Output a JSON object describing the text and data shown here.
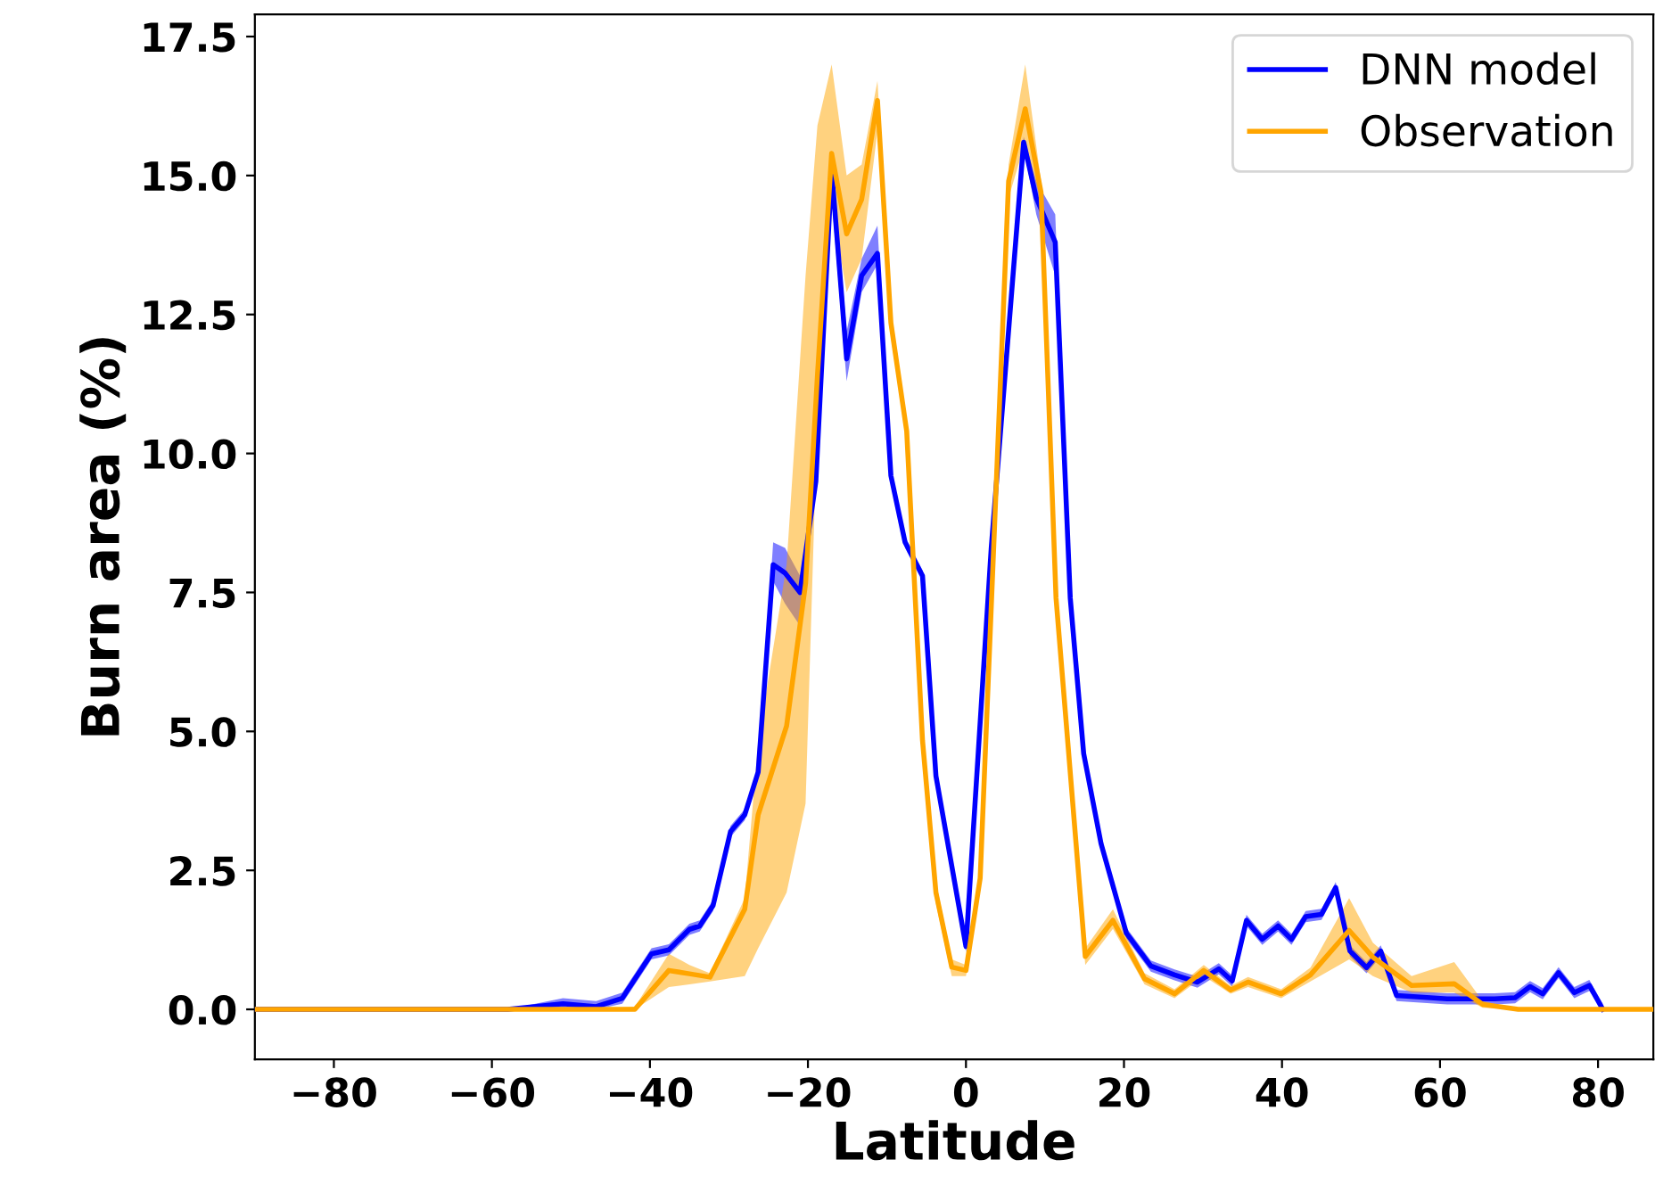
{
  "chart_data": {
    "type": "line",
    "xlabel": "Latitude",
    "ylabel": "Burn area (%)",
    "xlim": [
      -90,
      87
    ],
    "ylim": [
      -0.9,
      17.9
    ],
    "xticks": [
      {
        "value": -80,
        "label": "−80"
      },
      {
        "value": -60,
        "label": "−60"
      },
      {
        "value": -40,
        "label": "−40"
      },
      {
        "value": -20,
        "label": "−20"
      },
      0,
      20,
      40,
      60,
      80
    ],
    "yticks": [
      {
        "value": 0,
        "label": "0.0"
      },
      {
        "value": 2.5,
        "label": "2.5"
      },
      {
        "value": 5,
        "label": "5.0"
      },
      {
        "value": 7.5,
        "label": "7.5"
      },
      {
        "value": 10,
        "label": "10.0"
      },
      {
        "value": 12.5,
        "label": "12.5"
      },
      {
        "value": 15,
        "label": "15.0"
      },
      {
        "value": 17.5,
        "label": "17.5"
      }
    ],
    "grid": false,
    "legend": "top right",
    "marker": "none",
    "line_style": "solid",
    "series": [
      {
        "name": "DNN model",
        "color": "#0000ff",
        "x": [
          -90,
          -58,
          -51,
          -46.8,
          -43.5,
          -39.8,
          -37.6,
          -35,
          -33.7,
          -32,
          -29.8,
          -28,
          -26.3,
          -24.4,
          -22.9,
          -21,
          -19,
          -17,
          -15.1,
          -13.2,
          -11.2,
          -9.5,
          -7.7,
          -5.5,
          -3.8,
          0,
          3.2,
          7.3,
          8.9,
          11.3,
          13.2,
          14.9,
          17.1,
          20.3,
          23.4,
          26.4,
          29.3,
          32,
          33.7,
          35.5,
          37.5,
          39.5,
          41.2,
          43,
          45,
          46.8,
          48.6,
          50.7,
          52.5,
          54.5,
          60.9,
          66.9,
          69.5,
          71.4,
          73,
          75,
          77,
          78.9,
          80.6
        ],
        "values": [
          0,
          0,
          0.1,
          0.05,
          0.2,
          1.0,
          1.07,
          1.44,
          1.5,
          1.87,
          3.2,
          3.5,
          4.27,
          8.0,
          7.85,
          7.5,
          9.5,
          15.1,
          11.7,
          13.2,
          13.6,
          9.6,
          8.4,
          7.8,
          4.2,
          1.13,
          8.3,
          15.6,
          14.6,
          13.8,
          7.4,
          4.6,
          2.98,
          1.37,
          0.78,
          0.62,
          0.49,
          0.73,
          0.51,
          1.6,
          1.26,
          1.5,
          1.26,
          1.67,
          1.71,
          2.19,
          1.05,
          0.75,
          1.05,
          0.25,
          0.19,
          0.19,
          0.21,
          0.41,
          0.28,
          0.66,
          0.3,
          0.43,
          0
        ],
        "lower": [
          0,
          0,
          0,
          0,
          0.1,
          0.9,
          0.97,
          1.34,
          1.4,
          1.77,
          3.1,
          3.4,
          4.17,
          7.7,
          7.3,
          6.9,
          9.4,
          14.6,
          11.3,
          12.9,
          13.4,
          9.5,
          8.3,
          7.7,
          4.1,
          1.03,
          8.2,
          15.5,
          14.3,
          13.2,
          7.3,
          4.5,
          2.88,
          1.27,
          0.68,
          0.52,
          0.39,
          0.63,
          0.41,
          1.5,
          1.16,
          1.4,
          1.16,
          1.57,
          1.61,
          2.09,
          0.95,
          0.65,
          0.95,
          0.15,
          0.09,
          0.09,
          0.11,
          0.31,
          0.18,
          0.56,
          0.2,
          0.33,
          0
        ],
        "upper": [
          0,
          0,
          0.2,
          0.15,
          0.3,
          1.1,
          1.17,
          1.54,
          1.6,
          1.97,
          3.3,
          3.6,
          4.37,
          8.4,
          8.3,
          7.8,
          9.6,
          15.4,
          12.2,
          13.5,
          14.1,
          9.7,
          8.5,
          7.9,
          4.3,
          1.23,
          8.4,
          15.7,
          14.9,
          14.3,
          7.5,
          4.7,
          3.08,
          1.47,
          0.88,
          0.72,
          0.59,
          0.83,
          0.61,
          1.7,
          1.36,
          1.6,
          1.36,
          1.77,
          1.81,
          2.29,
          1.15,
          0.85,
          1.15,
          0.35,
          0.29,
          0.29,
          0.31,
          0.51,
          0.38,
          0.76,
          0.4,
          0.53,
          0.1
        ]
      },
      {
        "name": "Observation",
        "color": "#ffa500",
        "x": [
          -90,
          -48,
          -41.9,
          -37.6,
          -35,
          -32.4,
          -28,
          -26.3,
          -22.7,
          -20.3,
          -18.8,
          -17,
          -15.1,
          -13.2,
          -11.2,
          -9.5,
          -7.5,
          -5.5,
          -3.8,
          -1.8,
          0,
          1.8,
          5.4,
          7.5,
          9.5,
          11.4,
          15.1,
          18.6,
          22.6,
          26.4,
          30.1,
          33.5,
          35.7,
          39.9,
          43.6,
          48.5,
          51.5,
          56.4,
          61.8,
          65.4,
          69.9,
          87
        ],
        "values": [
          0,
          0,
          0,
          0.7,
          0.64,
          0.58,
          1.8,
          3.5,
          5.1,
          7.66,
          11.4,
          15.4,
          13.95,
          14.57,
          16.35,
          12.35,
          10.4,
          4.84,
          2.1,
          0.76,
          0.7,
          2.36,
          14.9,
          16.2,
          14.7,
          7.4,
          0.95,
          1.6,
          0.55,
          0.28,
          0.7,
          0.35,
          0.49,
          0.28,
          0.62,
          1.42,
          0.94,
          0.43,
          0.46,
          0.09,
          0,
          0
        ],
        "lower": [
          0,
          0,
          0,
          0.4,
          0.45,
          0.5,
          0.6,
          1.1,
          2.1,
          3.7,
          10.7,
          14.5,
          12.9,
          13.5,
          15.8,
          12.1,
          10.2,
          4.6,
          1.9,
          0.6,
          0.6,
          2.2,
          14.6,
          15.6,
          14.5,
          7.2,
          0.8,
          1.45,
          0.45,
          0.2,
          0.6,
          0.28,
          0.4,
          0.2,
          0.5,
          0.9,
          0.6,
          0.3,
          0.3,
          0.03,
          0,
          0
        ],
        "upper": [
          0,
          0,
          0.05,
          1.0,
          0.8,
          0.65,
          2.0,
          4.8,
          8.0,
          13.2,
          15.9,
          17.0,
          15.0,
          15.2,
          16.7,
          12.6,
          10.6,
          5.1,
          2.3,
          0.9,
          0.8,
          2.5,
          15.2,
          17.0,
          14.9,
          7.6,
          1.1,
          1.8,
          0.65,
          0.36,
          0.8,
          0.42,
          0.58,
          0.36,
          0.75,
          2.0,
          1.2,
          0.6,
          0.85,
          0.15,
          0,
          0
        ]
      }
    ]
  }
}
